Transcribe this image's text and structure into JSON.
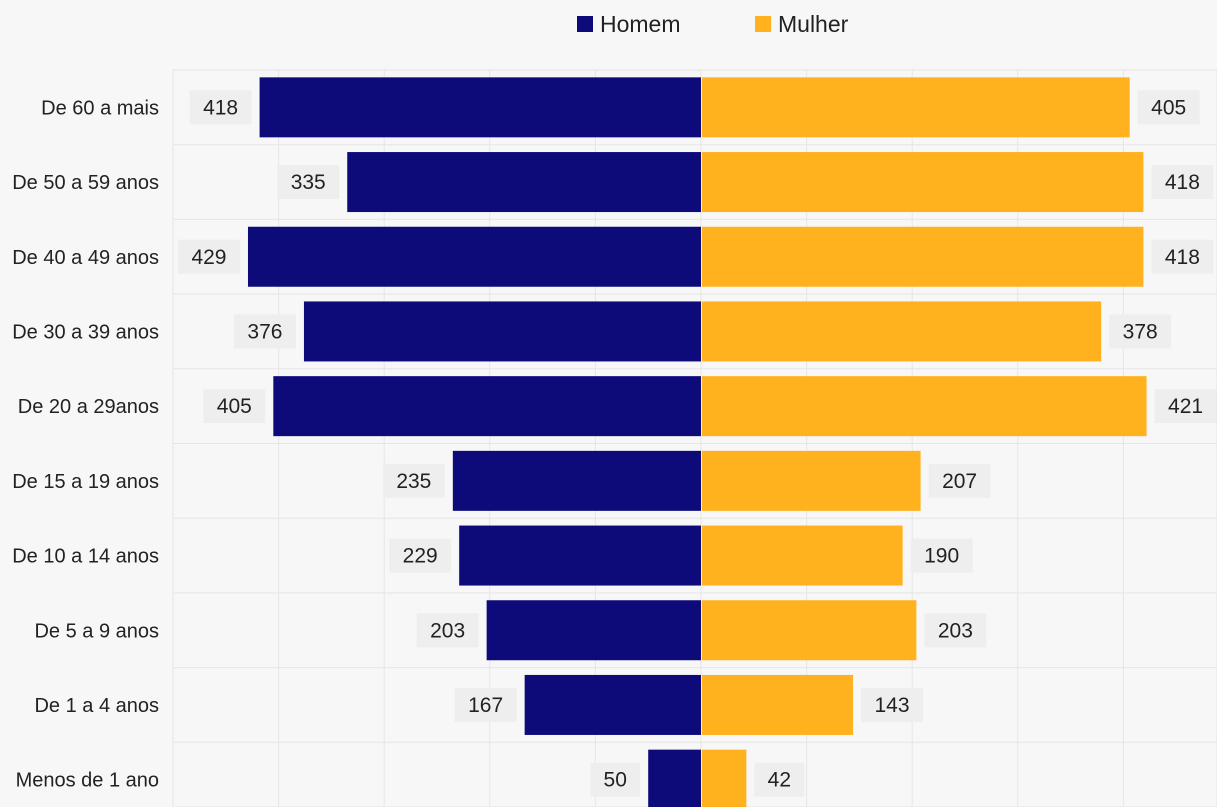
{
  "chart_data": {
    "type": "bar",
    "orientation": "horizontal",
    "layout": "population-pyramid",
    "categories": [
      "De 60 a mais",
      "De 50 a 59 anos",
      "De 40 a 49 anos",
      "De 30 a 39 anos",
      "De 20 a 29anos",
      "De 15 a 19 anos",
      "De 10 a 14 anos",
      "De 5 a 9 anos",
      "De 1 a 4 anos",
      "Menos de 1 ano"
    ],
    "series": [
      {
        "name": "Homem",
        "side": "left",
        "color": "#0d0a7a",
        "values": [
          418,
          335,
          429,
          376,
          405,
          235,
          229,
          203,
          167,
          50
        ]
      },
      {
        "name": "Mulher",
        "side": "right",
        "color": "#ffb11e",
        "values": [
          405,
          418,
          418,
          378,
          421,
          207,
          190,
          203,
          143,
          42
        ]
      }
    ],
    "xlim": [
      -500,
      500
    ],
    "grid": true,
    "legend_position": "top-center",
    "data_labels": true
  },
  "colors": {
    "background": "#f7f7f7",
    "grid": "#e6e6e6",
    "label_box": "#eeeeee"
  }
}
